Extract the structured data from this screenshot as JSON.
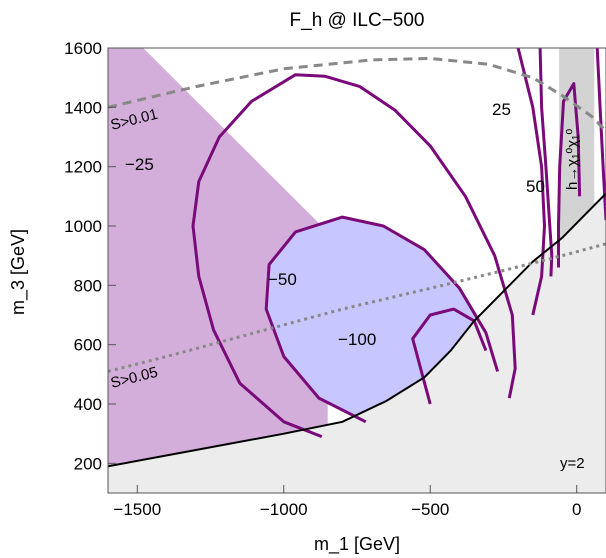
{
  "chart_data": {
    "type": "contour",
    "title": "F_h @ ILC−500",
    "xlabel": "m_1 [GeV]",
    "ylabel": "m_3 [GeV]",
    "xlim": [
      -1600,
      100
    ],
    "ylim": [
      100,
      1600
    ],
    "xticks": [
      -1500,
      -1000,
      -500,
      0
    ],
    "xtick_labels": [
      "−1500",
      "−1000",
      "−500",
      "0"
    ],
    "yticks": [
      200,
      400,
      600,
      800,
      1000,
      1200,
      1400,
      1600
    ],
    "ytick_labels": [
      "200",
      "400",
      "600",
      "800",
      "1000",
      "1200",
      "1400",
      "1600"
    ],
    "parameter_label": "y=2",
    "contour_levels": [
      "25",
      "50",
      "−25",
      "−50",
      "−100"
    ],
    "contours": [
      {
        "level": "−25",
        "points": [
          [
            -870,
            290
          ],
          [
            -1000,
            340
          ],
          [
            -1150,
            470
          ],
          [
            -1240,
            650
          ],
          [
            -1290,
            830
          ],
          [
            -1310,
            1000
          ],
          [
            -1290,
            1150
          ],
          [
            -1220,
            1300
          ],
          [
            -1110,
            1420
          ],
          [
            -960,
            1510
          ],
          [
            -860,
            1505
          ],
          [
            -740,
            1470
          ],
          [
            -620,
            1390
          ],
          [
            -500,
            1270
          ],
          [
            -380,
            1100
          ],
          [
            -280,
            900
          ],
          [
            -220,
            700
          ],
          [
            -210,
            520
          ],
          [
            -230,
            420
          ]
        ]
      },
      {
        "level": "−50",
        "points": [
          [
            -720,
            340
          ],
          [
            -880,
            420
          ],
          [
            -1000,
            560
          ],
          [
            -1060,
            720
          ],
          [
            -1050,
            870
          ],
          [
            -960,
            980
          ],
          [
            -800,
            1030
          ],
          [
            -660,
            1000
          ],
          [
            -520,
            920
          ],
          [
            -400,
            790
          ],
          [
            -310,
            640
          ],
          [
            -270,
            510
          ]
        ]
      },
      {
        "level": "−100",
        "points": [
          [
            -500,
            400
          ],
          [
            -530,
            510
          ],
          [
            -560,
            620
          ],
          [
            -500,
            700
          ],
          [
            -420,
            720
          ],
          [
            -350,
            680
          ],
          [
            -310,
            580
          ]
        ]
      },
      {
        "level": "25",
        "points": [
          [
            -200,
            1600
          ],
          [
            -150,
            1400
          ],
          [
            -120,
            1200
          ],
          [
            -110,
            1000
          ],
          [
            -120,
            830
          ],
          [
            -150,
            700
          ]
        ]
      },
      {
        "level": "25",
        "points": [
          [
            -125,
            1600
          ],
          [
            -120,
            1400
          ],
          [
            -105,
            1200
          ],
          [
            -92,
            1000
          ],
          [
            -85,
            900
          ],
          [
            -88,
            830
          ]
        ]
      },
      {
        "level": "50",
        "points": [
          [
            -62,
            860
          ],
          [
            -62,
            1000
          ],
          [
            -58,
            1200
          ],
          [
            -45,
            1420
          ],
          [
            -10,
            1480
          ],
          [
            5,
            1300
          ],
          [
            10,
            1100
          ]
        ]
      },
      {
        "level": "25",
        "points": [
          [
            100,
            1020
          ],
          [
            90,
            1200
          ],
          [
            80,
            1400
          ],
          [
            70,
            1600
          ]
        ]
      }
    ],
    "exclusion_curve": {
      "points": [
        [
          -1600,
          190
        ],
        [
          -1300,
          245
        ],
        [
          -1000,
          300
        ],
        [
          -800,
          340
        ],
        [
          -650,
          410
        ],
        [
          -520,
          490
        ],
        [
          -430,
          580
        ],
        [
          -350,
          680
        ],
        [
          -250,
          780
        ],
        [
          -150,
          880
        ],
        [
          -50,
          960
        ],
        [
          50,
          1060
        ],
        [
          100,
          1110
        ]
      ]
    },
    "region_labels": {
      "s001": "S>0.01",
      "s005": "S>0.05",
      "decay": "h→χ₁⁰χ₁⁰"
    },
    "lines": [
      {
        "label": "S>0.01",
        "style": "dashed",
        "points": [
          [
            -1600,
            1400
          ],
          [
            -1300,
            1470
          ],
          [
            -1000,
            1530
          ],
          [
            -700,
            1560
          ],
          [
            -500,
            1565
          ],
          [
            -300,
            1545
          ],
          [
            -150,
            1500
          ],
          [
            -50,
            1440
          ],
          [
            50,
            1370
          ],
          [
            100,
            1320
          ]
        ]
      },
      {
        "label": "S>0.05",
        "style": "dotted",
        "points": [
          [
            -1600,
            510
          ],
          [
            -1400,
            560
          ],
          [
            -1100,
            640
          ],
          [
            -800,
            720
          ],
          [
            -500,
            790
          ],
          [
            -250,
            850
          ],
          [
            -50,
            900
          ],
          [
            100,
            940
          ]
        ]
      }
    ],
    "colors": {
      "contour": "#7a0a7a",
      "positive_fill": "#c8c6ff",
      "negative_fill": "#cdb6e6",
      "pink_region": "#d4aedb",
      "excluded": "#ececec",
      "decay_band": "#d3d3d3",
      "s_lines": "#888888"
    }
  }
}
